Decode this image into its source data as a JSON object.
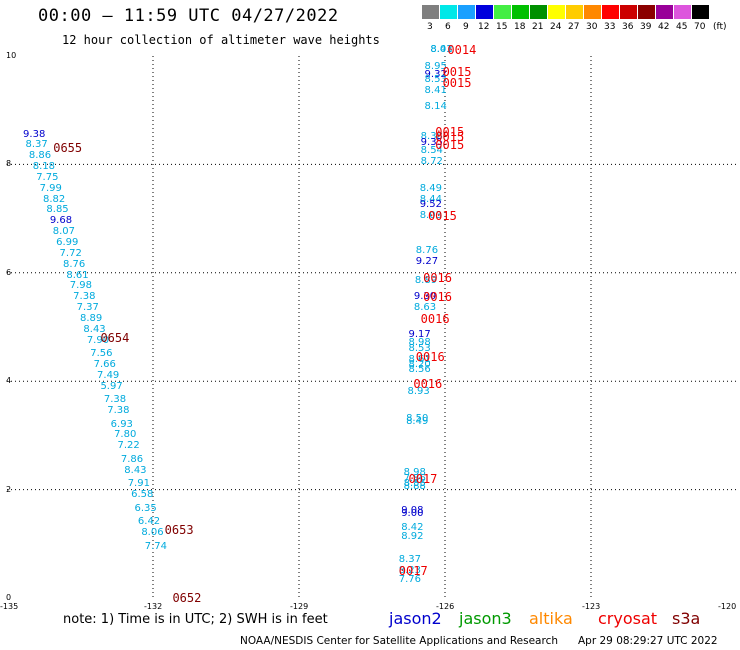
{
  "title": "00:00 — 11:59 UTC 04/27/2022",
  "subtitle": "12 hour collection of altimeter wave heights",
  "legend": {
    "unit": "(ft)",
    "entries": [
      {
        "label": "3",
        "color": "#7f7f7f"
      },
      {
        "label": "6",
        "color": "#00e8e8"
      },
      {
        "label": "9",
        "color": "#1aa0ff"
      },
      {
        "label": "12",
        "color": "#0000dd"
      },
      {
        "label": "15",
        "color": "#44ee44"
      },
      {
        "label": "18",
        "color": "#00c000"
      },
      {
        "label": "21",
        "color": "#009000"
      },
      {
        "label": "24",
        "color": "#ffff00"
      },
      {
        "label": "27",
        "color": "#ffcc00"
      },
      {
        "label": "30",
        "color": "#ff8800"
      },
      {
        "label": "33",
        "color": "#ff0000"
      },
      {
        "label": "36",
        "color": "#cc0000"
      },
      {
        "label": "39",
        "color": "#8b0000"
      },
      {
        "label": "42",
        "color": "#990099"
      },
      {
        "label": "45",
        "color": "#dd55dd"
      },
      {
        "label": "70",
        "color": "#000000"
      }
    ]
  },
  "axes": {
    "lon_ticks": [
      "-135",
      "-132",
      "-129",
      "-126",
      "-123",
      "-120"
    ],
    "lat_ticks": [
      "0",
      "2",
      "4",
      "6",
      "8",
      "10"
    ],
    "lon_range": [
      -135,
      -120
    ],
    "lat_range": [
      0,
      10
    ]
  },
  "colors": {
    "light": "#00aadd",
    "dark": "#0000cc",
    "pass_maroon": "#800000",
    "pass_red": "#ee0000"
  },
  "observations": [
    {
      "v": "9.38",
      "lon": -134.67,
      "lat": 8.55,
      "c": "dark"
    },
    {
      "v": "8.37",
      "lon": -134.62,
      "lat": 8.35,
      "c": "light"
    },
    {
      "v": "8.86",
      "lon": -134.55,
      "lat": 8.15,
      "c": "light"
    },
    {
      "v": "8.18",
      "lon": -134.47,
      "lat": 7.95,
      "c": "light"
    },
    {
      "v": "7.75",
      "lon": -134.4,
      "lat": 7.75,
      "c": "light"
    },
    {
      "v": "7.99",
      "lon": -134.33,
      "lat": 7.55,
      "c": "light"
    },
    {
      "v": "8.82",
      "lon": -134.26,
      "lat": 7.35,
      "c": "light"
    },
    {
      "v": "8.85",
      "lon": -134.19,
      "lat": 7.15,
      "c": "light"
    },
    {
      "v": "9.68",
      "lon": -134.12,
      "lat": 6.95,
      "c": "dark"
    },
    {
      "v": "8.07",
      "lon": -134.06,
      "lat": 6.75,
      "c": "light"
    },
    {
      "v": "6.99",
      "lon": -133.99,
      "lat": 6.55,
      "c": "light"
    },
    {
      "v": "7.72",
      "lon": -133.92,
      "lat": 6.35,
      "c": "light"
    },
    {
      "v": "8.76",
      "lon": -133.85,
      "lat": 6.15,
      "c": "light"
    },
    {
      "v": "8.61",
      "lon": -133.78,
      "lat": 5.95,
      "c": "light"
    },
    {
      "v": "7.98",
      "lon": -133.71,
      "lat": 5.75,
      "c": "light"
    },
    {
      "v": "7.38",
      "lon": -133.64,
      "lat": 5.55,
      "c": "light"
    },
    {
      "v": "7.37",
      "lon": -133.57,
      "lat": 5.35,
      "c": "light"
    },
    {
      "v": "8.89",
      "lon": -133.5,
      "lat": 5.15,
      "c": "light"
    },
    {
      "v": "8.43",
      "lon": -133.43,
      "lat": 4.95,
      "c": "light"
    },
    {
      "v": "7.90",
      "lon": -133.36,
      "lat": 4.75,
      "c": "light"
    },
    {
      "v": "7.56",
      "lon": -133.29,
      "lat": 4.5,
      "c": "light"
    },
    {
      "v": "7.66",
      "lon": -133.22,
      "lat": 4.3,
      "c": "light"
    },
    {
      "v": "7.49",
      "lon": -133.15,
      "lat": 4.1,
      "c": "light"
    },
    {
      "v": "5.97",
      "lon": -133.08,
      "lat": 3.9,
      "c": "light"
    },
    {
      "v": "7.38",
      "lon": -133.01,
      "lat": 3.65,
      "c": "light"
    },
    {
      "v": "7.38",
      "lon": -132.94,
      "lat": 3.45,
      "c": "light"
    },
    {
      "v": "6.93",
      "lon": -132.87,
      "lat": 3.2,
      "c": "light"
    },
    {
      "v": "7.80",
      "lon": -132.8,
      "lat": 3.0,
      "c": "light"
    },
    {
      "v": "7.22",
      "lon": -132.73,
      "lat": 2.8,
      "c": "light"
    },
    {
      "v": "7.86",
      "lon": -132.66,
      "lat": 2.55,
      "c": "light"
    },
    {
      "v": "8.43",
      "lon": -132.59,
      "lat": 2.35,
      "c": "light"
    },
    {
      "v": "7.91",
      "lon": -132.52,
      "lat": 2.1,
      "c": "light"
    },
    {
      "v": "6.58",
      "lon": -132.45,
      "lat": 1.9,
      "c": "light"
    },
    {
      "v": "6.35",
      "lon": -132.38,
      "lat": 1.65,
      "c": "light"
    },
    {
      "v": "6.42",
      "lon": -132.31,
      "lat": 1.4,
      "c": "light"
    },
    {
      "v": "8.06",
      "lon": -132.24,
      "lat": 1.2,
      "c": "light"
    },
    {
      "v": "7.74",
      "lon": -132.17,
      "lat": 0.95,
      "c": "light"
    },
    {
      "v": "8.41",
      "lon": -126.3,
      "lat": 10.5,
      "c": "light"
    },
    {
      "v": "8.03",
      "lon": -126.3,
      "lat": 10.4,
      "c": "light"
    },
    {
      "v": "8.95",
      "lon": -126.42,
      "lat": 9.8,
      "c": "light"
    },
    {
      "v": "9.32",
      "lon": -126.42,
      "lat": 9.65,
      "c": "dark"
    },
    {
      "v": "8.53",
      "lon": -126.42,
      "lat": 9.55,
      "c": "light"
    },
    {
      "v": "8.41",
      "lon": -126.42,
      "lat": 9.35,
      "c": "light"
    },
    {
      "v": "8.14",
      "lon": -126.42,
      "lat": 9.05,
      "c": "light"
    },
    {
      "v": "8.38",
      "lon": -126.5,
      "lat": 8.5,
      "c": "light"
    },
    {
      "v": "9.35",
      "lon": -126.5,
      "lat": 8.4,
      "c": "dark"
    },
    {
      "v": "8.54",
      "lon": -126.5,
      "lat": 8.25,
      "c": "light"
    },
    {
      "v": "8.72",
      "lon": -126.5,
      "lat": 8.05,
      "c": "light"
    },
    {
      "v": "8.49",
      "lon": -126.52,
      "lat": 7.55,
      "c": "light"
    },
    {
      "v": "8.44",
      "lon": -126.52,
      "lat": 7.35,
      "c": "light"
    },
    {
      "v": "9.52",
      "lon": -126.52,
      "lat": 7.25,
      "c": "dark"
    },
    {
      "v": "8.03",
      "lon": -126.52,
      "lat": 7.05,
      "c": "light"
    },
    {
      "v": "8.76",
      "lon": -126.6,
      "lat": 6.4,
      "c": "light"
    },
    {
      "v": "9.27",
      "lon": -126.6,
      "lat": 6.2,
      "c": "dark"
    },
    {
      "v": "8.89",
      "lon": -126.62,
      "lat": 5.85,
      "c": "light"
    },
    {
      "v": "9.30",
      "lon": -126.64,
      "lat": 5.55,
      "c": "dark"
    },
    {
      "v": "8.63",
      "lon": -126.64,
      "lat": 5.35,
      "c": "light"
    },
    {
      "v": "9.17",
      "lon": -126.75,
      "lat": 4.85,
      "c": "dark"
    },
    {
      "v": "8.98",
      "lon": -126.75,
      "lat": 4.7,
      "c": "light"
    },
    {
      "v": "8.53",
      "lon": -126.75,
      "lat": 4.6,
      "c": "light"
    },
    {
      "v": "8.61",
      "lon": -126.75,
      "lat": 4.4,
      "c": "light"
    },
    {
      "v": "8.20",
      "lon": -126.75,
      "lat": 4.3,
      "c": "light"
    },
    {
      "v": "8.56",
      "lon": -126.75,
      "lat": 4.2,
      "c": "light"
    },
    {
      "v": "8.93",
      "lon": -126.77,
      "lat": 3.8,
      "c": "light"
    },
    {
      "v": "8.50",
      "lon": -126.8,
      "lat": 3.3,
      "c": "light"
    },
    {
      "v": "8.49",
      "lon": -126.8,
      "lat": 3.25,
      "c": "light"
    },
    {
      "v": "8.98",
      "lon": -126.85,
      "lat": 2.3,
      "c": "light"
    },
    {
      "v": "7.86",
      "lon": -126.85,
      "lat": 2.2,
      "c": "light"
    },
    {
      "v": "8.55",
      "lon": -126.85,
      "lat": 2.1,
      "c": "light"
    },
    {
      "v": "8.88",
      "lon": -126.85,
      "lat": 2.05,
      "c": "light"
    },
    {
      "v": "9.08",
      "lon": -126.9,
      "lat": 1.6,
      "c": "dark"
    },
    {
      "v": "9.00",
      "lon": -126.9,
      "lat": 1.55,
      "c": "dark"
    },
    {
      "v": "8.42",
      "lon": -126.9,
      "lat": 1.3,
      "c": "light"
    },
    {
      "v": "8.92",
      "lon": -126.9,
      "lat": 1.12,
      "c": "light"
    },
    {
      "v": "8.37",
      "lon": -126.95,
      "lat": 0.7,
      "c": "light"
    },
    {
      "v": "8.23",
      "lon": -126.95,
      "lat": 0.5,
      "c": "light"
    },
    {
      "v": "7.76",
      "lon": -126.95,
      "lat": 0.33,
      "c": "light"
    }
  ],
  "passes": [
    {
      "t": "0655",
      "lon": -134.05,
      "lat": 8.3,
      "c": "pass_maroon"
    },
    {
      "t": "0654",
      "lon": -133.08,
      "lat": 4.8,
      "c": "pass_maroon"
    },
    {
      "t": "0653",
      "lon": -131.76,
      "lat": 1.25,
      "c": "pass_maroon"
    },
    {
      "t": "0652",
      "lon": -131.6,
      "lat": 0.0,
      "c": "pass_maroon"
    },
    {
      "t": "0014",
      "lon": -125.95,
      "lat": 10.4,
      "c": "pass_red"
    },
    {
      "t": "0015",
      "lon": -126.05,
      "lat": 9.7,
      "c": "pass_red"
    },
    {
      "t": "0015",
      "lon": -126.05,
      "lat": 9.5,
      "c": "pass_red"
    },
    {
      "t": "0015",
      "lon": -126.2,
      "lat": 8.6,
      "c": "pass_red"
    },
    {
      "t": "0015",
      "lon": -126.2,
      "lat": 8.5,
      "c": "pass_red"
    },
    {
      "t": "0015",
      "lon": -126.2,
      "lat": 8.35,
      "c": "pass_red"
    },
    {
      "t": "0015",
      "lon": -126.35,
      "lat": 7.05,
      "c": "pass_red"
    },
    {
      "t": "0016",
      "lon": -126.45,
      "lat": 5.9,
      "c": "pass_red"
    },
    {
      "t": "0016",
      "lon": -126.45,
      "lat": 5.55,
      "c": "pass_red"
    },
    {
      "t": "0016",
      "lon": -126.5,
      "lat": 5.15,
      "c": "pass_red"
    },
    {
      "t": "0016",
      "lon": -126.6,
      "lat": 4.45,
      "c": "pass_red"
    },
    {
      "t": "0016",
      "lon": -126.65,
      "lat": 3.95,
      "c": "pass_red"
    },
    {
      "t": "0017",
      "lon": -126.75,
      "lat": 2.2,
      "c": "pass_red"
    },
    {
      "t": "0017",
      "lon": -126.95,
      "lat": 0.5,
      "c": "pass_red"
    }
  ],
  "footer": {
    "note": "note: 1) Time is in UTC; 2) SWH is in feet",
    "satellites": [
      {
        "name": "jason2",
        "color": "#0000cc"
      },
      {
        "name": "jason3",
        "color": "#009900"
      },
      {
        "name": "altika",
        "color": "#ff8800"
      },
      {
        "name": "cryosat",
        "color": "#ee0000"
      },
      {
        "name": "s3a",
        "color": "#800000"
      }
    ],
    "credit": "NOAA/NESDIS Center for Satellite Applications and Research",
    "generated": "Apr 29 08:29:27 UTC 2022"
  }
}
